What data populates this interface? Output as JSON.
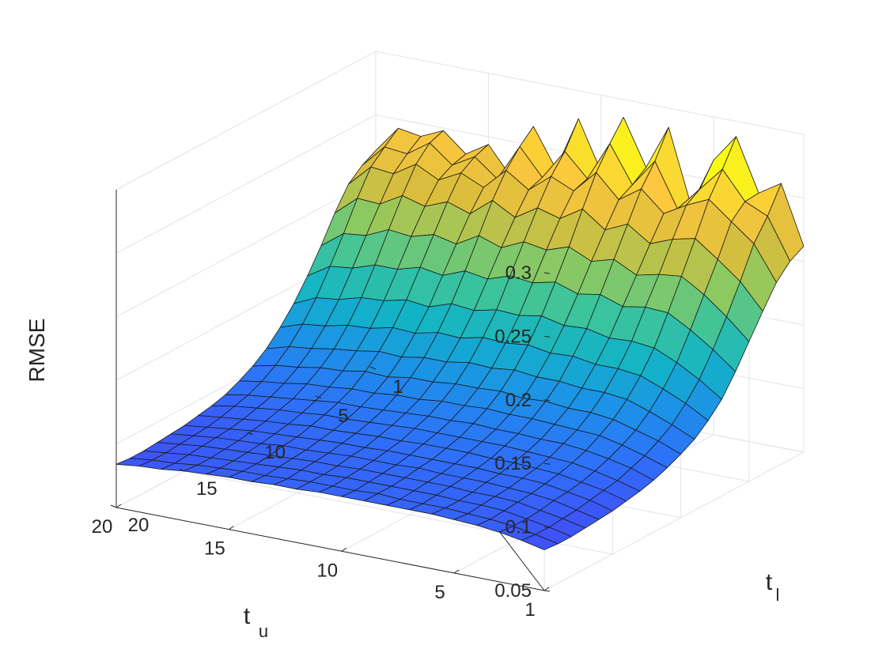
{
  "chart_data": {
    "type": "surface",
    "zlabel": "RMSE",
    "xlabel_main": "t",
    "xlabel_sub": "u",
    "ylabel_main": "t",
    "ylabel_sub": "l",
    "x_ticks": [
      "20",
      "15",
      "10",
      "5",
      "1"
    ],
    "y_ticks": [
      "1",
      "5",
      "10",
      "15",
      "20"
    ],
    "z_ticks": [
      "0.3",
      "0.25",
      "0.2",
      "0.15",
      "0.1",
      "0.05"
    ],
    "x_range": [
      1,
      20
    ],
    "y_range": [
      1,
      20
    ],
    "zlim": [
      0.05,
      0.3
    ],
    "grid": true,
    "colormap": "parula",
    "colormap_stops": [
      "#3e26a8",
      "#4743f5",
      "#2f6ffa",
      "#1c92e7",
      "#12b3c7",
      "#3cc49b",
      "#8fc95f",
      "#d9bd3c",
      "#fbc73e",
      "#f9fb15"
    ],
    "grid_size": [
      20,
      20
    ],
    "z_values": [
      [
        0.212,
        0.258,
        0.247,
        0.288,
        0.266,
        0.227,
        0.285,
        0.25,
        0.286,
        0.24,
        0.278,
        0.235,
        0.265,
        0.222,
        0.244,
        0.233,
        0.248,
        0.24,
        0.243,
        0.222
      ],
      [
        0.206,
        0.238,
        0.246,
        0.268,
        0.249,
        0.23,
        0.264,
        0.242,
        0.271,
        0.24,
        0.258,
        0.234,
        0.255,
        0.226,
        0.24,
        0.23,
        0.244,
        0.232,
        0.234,
        0.216
      ],
      [
        0.195,
        0.222,
        0.236,
        0.25,
        0.242,
        0.232,
        0.248,
        0.236,
        0.254,
        0.236,
        0.244,
        0.23,
        0.242,
        0.225,
        0.233,
        0.224,
        0.233,
        0.222,
        0.224,
        0.207
      ],
      [
        0.178,
        0.198,
        0.212,
        0.225,
        0.221,
        0.214,
        0.226,
        0.218,
        0.231,
        0.22,
        0.225,
        0.214,
        0.224,
        0.21,
        0.216,
        0.209,
        0.214,
        0.204,
        0.205,
        0.19
      ],
      [
        0.16,
        0.176,
        0.19,
        0.201,
        0.199,
        0.195,
        0.204,
        0.199,
        0.207,
        0.201,
        0.204,
        0.196,
        0.202,
        0.192,
        0.196,
        0.191,
        0.193,
        0.185,
        0.183,
        0.17
      ],
      [
        0.142,
        0.156,
        0.168,
        0.178,
        0.179,
        0.176,
        0.182,
        0.179,
        0.185,
        0.181,
        0.183,
        0.177,
        0.18,
        0.173,
        0.176,
        0.171,
        0.171,
        0.165,
        0.163,
        0.152
      ],
      [
        0.126,
        0.138,
        0.148,
        0.156,
        0.158,
        0.157,
        0.161,
        0.16,
        0.164,
        0.161,
        0.162,
        0.158,
        0.16,
        0.154,
        0.156,
        0.152,
        0.151,
        0.146,
        0.144,
        0.136
      ],
      [
        0.115,
        0.125,
        0.133,
        0.14,
        0.142,
        0.142,
        0.145,
        0.144,
        0.147,
        0.145,
        0.146,
        0.142,
        0.143,
        0.139,
        0.14,
        0.136,
        0.135,
        0.131,
        0.129,
        0.123
      ],
      [
        0.106,
        0.114,
        0.121,
        0.127,
        0.129,
        0.129,
        0.131,
        0.131,
        0.133,
        0.131,
        0.132,
        0.129,
        0.129,
        0.126,
        0.127,
        0.124,
        0.122,
        0.119,
        0.117,
        0.112
      ],
      [
        0.1,
        0.107,
        0.112,
        0.117,
        0.119,
        0.119,
        0.121,
        0.12,
        0.122,
        0.121,
        0.121,
        0.119,
        0.119,
        0.116,
        0.117,
        0.114,
        0.113,
        0.11,
        0.108,
        0.104
      ],
      [
        0.095,
        0.101,
        0.106,
        0.11,
        0.111,
        0.112,
        0.113,
        0.113,
        0.114,
        0.113,
        0.113,
        0.111,
        0.111,
        0.109,
        0.109,
        0.107,
        0.106,
        0.103,
        0.101,
        0.098
      ],
      [
        0.091,
        0.097,
        0.101,
        0.104,
        0.106,
        0.106,
        0.107,
        0.107,
        0.108,
        0.107,
        0.107,
        0.106,
        0.105,
        0.104,
        0.104,
        0.102,
        0.1,
        0.098,
        0.096,
        0.093
      ],
      [
        0.088,
        0.093,
        0.097,
        0.1,
        0.101,
        0.102,
        0.103,
        0.103,
        0.103,
        0.103,
        0.103,
        0.102,
        0.101,
        0.1,
        0.1,
        0.098,
        0.097,
        0.095,
        0.093,
        0.09
      ],
      [
        0.086,
        0.091,
        0.094,
        0.097,
        0.098,
        0.099,
        0.099,
        0.1,
        0.1,
        0.1,
        0.099,
        0.099,
        0.098,
        0.097,
        0.097,
        0.095,
        0.094,
        0.092,
        0.09,
        0.088
      ],
      [
        0.084,
        0.089,
        0.092,
        0.095,
        0.096,
        0.096,
        0.097,
        0.097,
        0.097,
        0.097,
        0.097,
        0.096,
        0.096,
        0.095,
        0.094,
        0.093,
        0.092,
        0.09,
        0.088,
        0.086
      ],
      [
        0.083,
        0.087,
        0.091,
        0.093,
        0.094,
        0.095,
        0.095,
        0.095,
        0.096,
        0.095,
        0.095,
        0.095,
        0.094,
        0.093,
        0.093,
        0.091,
        0.09,
        0.089,
        0.087,
        0.085
      ],
      [
        0.082,
        0.086,
        0.089,
        0.092,
        0.093,
        0.093,
        0.094,
        0.094,
        0.094,
        0.094,
        0.094,
        0.093,
        0.093,
        0.092,
        0.091,
        0.09,
        0.089,
        0.088,
        0.086,
        0.084
      ],
      [
        0.081,
        0.085,
        0.088,
        0.091,
        0.092,
        0.092,
        0.093,
        0.093,
        0.093,
        0.093,
        0.093,
        0.092,
        0.092,
        0.091,
        0.09,
        0.089,
        0.088,
        0.087,
        0.085,
        0.083
      ],
      [
        0.081,
        0.085,
        0.088,
        0.09,
        0.091,
        0.092,
        0.092,
        0.092,
        0.093,
        0.092,
        0.092,
        0.092,
        0.091,
        0.09,
        0.09,
        0.089,
        0.088,
        0.086,
        0.085,
        0.083
      ],
      [
        0.082,
        0.086,
        0.089,
        0.091,
        0.092,
        0.093,
        0.093,
        0.093,
        0.093,
        0.093,
        0.093,
        0.092,
        0.092,
        0.091,
        0.091,
        0.09,
        0.089,
        0.087,
        0.086,
        0.084
      ]
    ]
  }
}
